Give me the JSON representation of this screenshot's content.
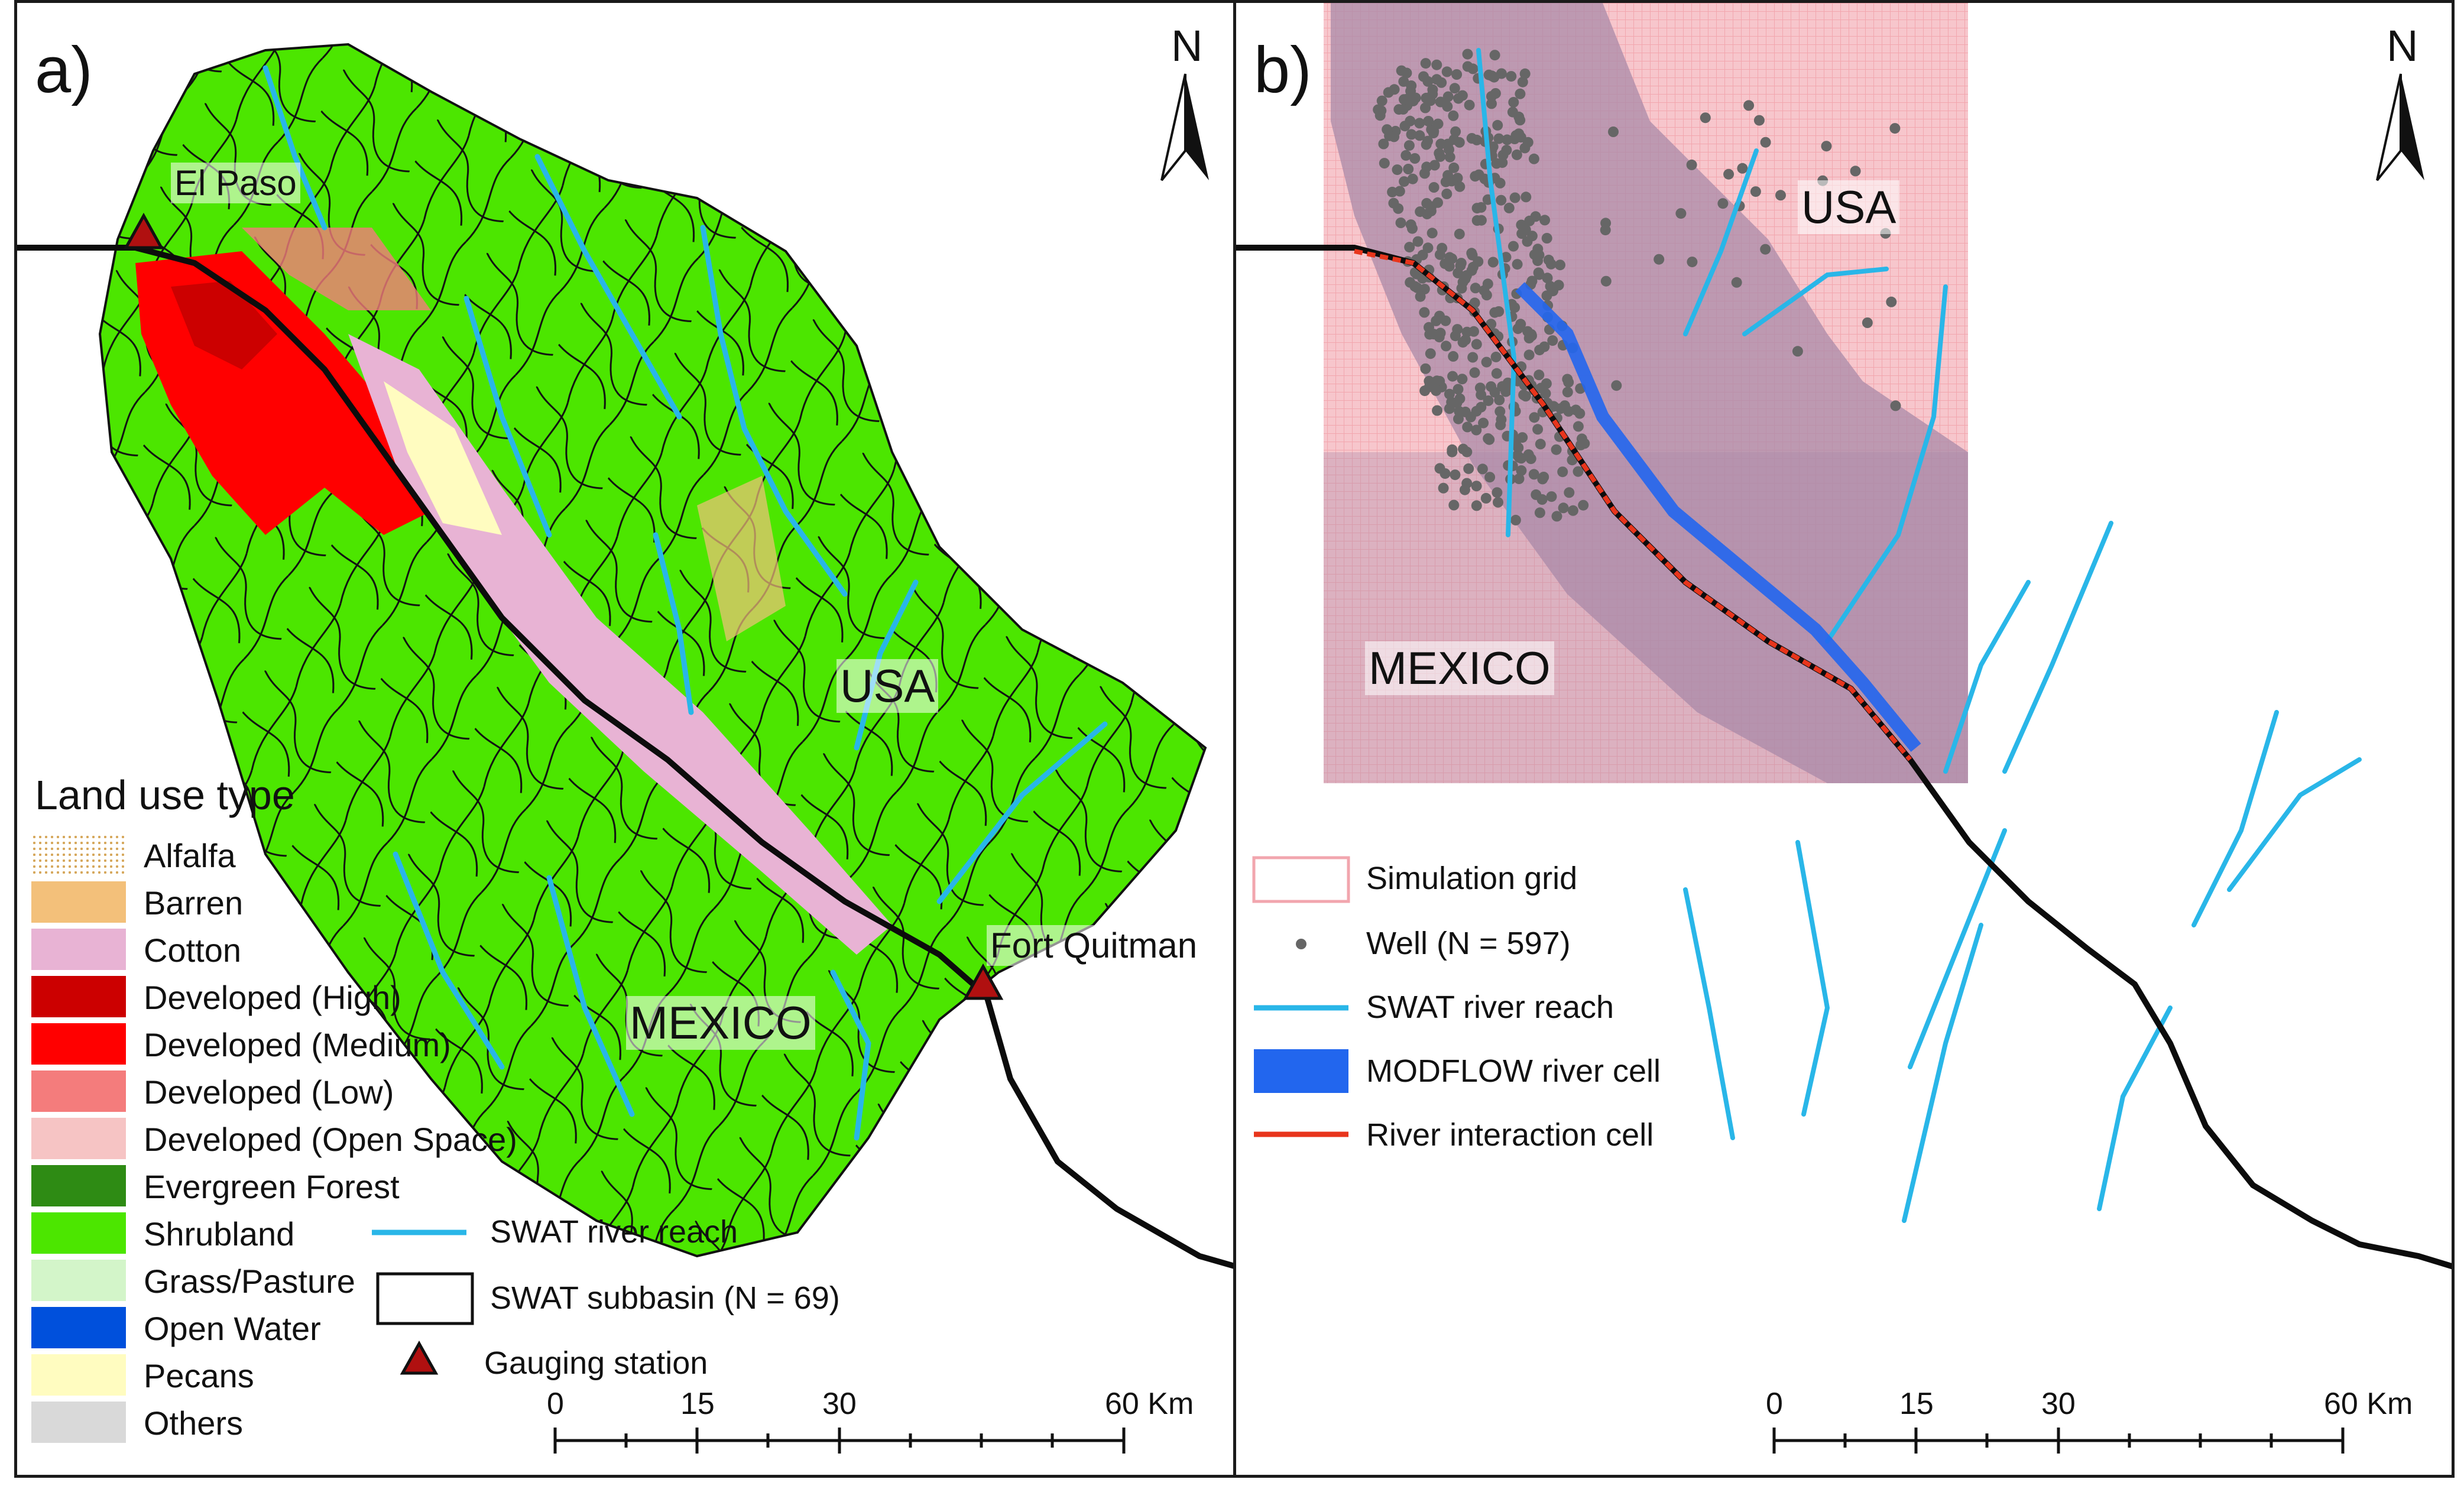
{
  "panel_a": {
    "label": "a)",
    "north": "N",
    "places": {
      "el_paso": "El Paso",
      "fort_quitman": "Fort Quitman",
      "usa": "USA",
      "mexico": "MEXICO"
    },
    "land_use_legend": {
      "title": "Land use type",
      "items": [
        {
          "label": "Alfalfa",
          "color": "#f4d9a8"
        },
        {
          "label": "Barren",
          "color": "#f3c07a"
        },
        {
          "label": "Cotton",
          "color": "#e8b3d4"
        },
        {
          "label": "Developed (High)",
          "color": "#cc0000"
        },
        {
          "label": "Developed (Medium)",
          "color": "#ff0000"
        },
        {
          "label": "Developed (Low)",
          "color": "#f47c7c"
        },
        {
          "label": "Developed (Open Space)",
          "color": "#f6c4c4"
        },
        {
          "label": "Evergreen Forest",
          "color": "#2e8b14"
        },
        {
          "label": "Shrubland",
          "color": "#4ce600"
        },
        {
          "label": "Grass/Pasture",
          "color": "#d3f5c9"
        },
        {
          "label": "Open Water",
          "color": "#0050dc"
        },
        {
          "label": "Pecans",
          "color": "#fffcc0"
        },
        {
          "label": "Others",
          "color": "#d9d9d9"
        }
      ]
    },
    "feature_legend": {
      "river_reach": "SWAT river reach",
      "subbasin": "SWAT subbasin (N = 69)",
      "gauging_station": "Gauging station"
    },
    "scale": {
      "ticks": [
        "0",
        "15",
        "30",
        "60 Km"
      ]
    }
  },
  "panel_b": {
    "label": "b)",
    "north": "N",
    "places": {
      "usa": "USA",
      "mexico": "MEXICO"
    },
    "legend": {
      "simulation_grid": "Simulation grid",
      "well": "Well (N = 597)",
      "river_reach": "SWAT river reach",
      "modflow_cell": "MODFLOW river cell",
      "interaction_cell": "River interaction cell"
    },
    "scale": {
      "ticks": [
        "0",
        "15",
        "30",
        "60 Km"
      ]
    }
  },
  "colors": {
    "shrubland": "#4ce600",
    "river": "#29b6e8",
    "grid_pink": "#f4a0a8",
    "grid_purple": "#a98aa8",
    "modflow": "#2266ee",
    "interaction": "#e8351c",
    "well": "#666666",
    "gauge": "#b01010"
  }
}
